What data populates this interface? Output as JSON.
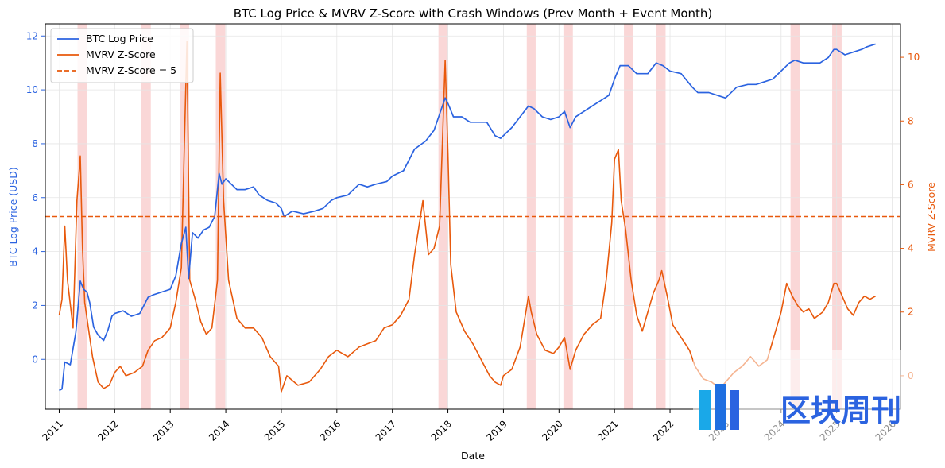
{
  "chart_data": {
    "type": "line",
    "title": "BTC Log Price & MVRV Z-Score with Crash Windows (Prev Month + Event Month)",
    "xlabel": "Date",
    "ylabel_left": "BTC Log Price (USD)",
    "ylabel_right": "MVRV Z-Score",
    "x_ticks": [
      "2011",
      "2012",
      "2013",
      "2014",
      "2015",
      "2016",
      "2017",
      "2018",
      "2019",
      "2020",
      "2021",
      "2022",
      "2023",
      "2024",
      "2025",
      "2026"
    ],
    "y_left_ticks": [
      "0",
      "2",
      "4",
      "6",
      "8",
      "10",
      "12"
    ],
    "y_right_ticks": [
      "0",
      "2",
      "4",
      "6",
      "8",
      "10"
    ],
    "xlim": [
      2010.75,
      2026.15
    ],
    "ylim_left": [
      -1.85,
      12.45
    ],
    "ylim_right": [
      -1.05,
      11.05
    ],
    "grid": true,
    "legend_position": "top-left",
    "colors": {
      "price": "#2b63e0",
      "mvrv": "#e8590c",
      "threshold": "#e8590c",
      "crash": "#f4a6a6",
      "right_axis": "#e8590c",
      "left_axis": "#2b63e0"
    },
    "series": [
      {
        "name": "BTC Log Price",
        "axis": "left",
        "x": [
          2011.0,
          2011.05,
          2011.1,
          2011.2,
          2011.3,
          2011.38,
          2011.44,
          2011.5,
          2011.55,
          2011.62,
          2011.7,
          2011.8,
          2011.88,
          2011.95,
          2012.0,
          2012.15,
          2012.3,
          2012.45,
          2012.6,
          2012.7,
          2012.85,
          2013.0,
          2013.1,
          2013.2,
          2013.28,
          2013.33,
          2013.4,
          2013.5,
          2013.6,
          2013.7,
          2013.8,
          2013.88,
          2013.93,
          2014.0,
          2014.1,
          2014.2,
          2014.35,
          2014.5,
          2014.6,
          2014.75,
          2014.9,
          2015.0,
          2015.05,
          2015.2,
          2015.4,
          2015.6,
          2015.75,
          2015.9,
          2016.0,
          2016.2,
          2016.4,
          2016.55,
          2016.7,
          2016.9,
          2017.0,
          2017.2,
          2017.4,
          2017.6,
          2017.75,
          2017.85,
          2017.95,
          2018.0,
          2018.1,
          2018.25,
          2018.4,
          2018.55,
          2018.7,
          2018.85,
          2018.95,
          2019.0,
          2019.15,
          2019.3,
          2019.45,
          2019.55,
          2019.7,
          2019.85,
          2020.0,
          2020.1,
          2020.2,
          2020.3,
          2020.45,
          2020.6,
          2020.75,
          2020.9,
          2021.0,
          2021.1,
          2021.25,
          2021.4,
          2021.5,
          2021.6,
          2021.75,
          2021.87,
          2022.0,
          2022.2,
          2022.4,
          2022.5,
          2022.7,
          2022.85,
          2023.0,
          2023.2,
          2023.4,
          2023.55,
          2023.7,
          2023.85,
          2024.0,
          2024.15,
          2024.25,
          2024.4,
          2024.55,
          2024.7,
          2024.85,
          2024.95,
          2025.0,
          2025.15,
          2025.3,
          2025.45,
          2025.55,
          2025.7
        ],
        "values": [
          -1.15,
          -1.1,
          -0.1,
          -0.2,
          1.0,
          2.9,
          2.6,
          2.5,
          2.1,
          1.2,
          0.9,
          0.7,
          1.1,
          1.6,
          1.7,
          1.8,
          1.6,
          1.7,
          2.3,
          2.4,
          2.5,
          2.6,
          3.1,
          4.3,
          4.9,
          3.0,
          4.7,
          4.5,
          4.8,
          4.9,
          5.3,
          6.9,
          6.5,
          6.7,
          6.5,
          6.3,
          6.3,
          6.4,
          6.1,
          5.9,
          5.8,
          5.6,
          5.3,
          5.5,
          5.4,
          5.5,
          5.6,
          5.9,
          6.0,
          6.1,
          6.5,
          6.4,
          6.5,
          6.6,
          6.8,
          7.0,
          7.8,
          8.1,
          8.5,
          9.1,
          9.7,
          9.5,
          9.0,
          9.0,
          8.8,
          8.8,
          8.8,
          8.3,
          8.2,
          8.3,
          8.6,
          9.0,
          9.4,
          9.3,
          9.0,
          8.9,
          9.0,
          9.2,
          8.6,
          9.0,
          9.2,
          9.4,
          9.6,
          9.8,
          10.4,
          10.9,
          10.9,
          10.6,
          10.6,
          10.6,
          11.0,
          10.9,
          10.7,
          10.6,
          10.1,
          9.9,
          9.9,
          9.8,
          9.7,
          10.1,
          10.2,
          10.2,
          10.3,
          10.4,
          10.7,
          11.0,
          11.1,
          11.0,
          11.0,
          11.0,
          11.2,
          11.5,
          11.5,
          11.3,
          11.4,
          11.5,
          11.6,
          11.7
        ]
      },
      {
        "name": "MVRV Z-Score",
        "axis": "right",
        "x": [
          2011.0,
          2011.05,
          2011.1,
          2011.15,
          2011.25,
          2011.32,
          2011.38,
          2011.42,
          2011.46,
          2011.55,
          2011.6,
          2011.7,
          2011.8,
          2011.9,
          2012.0,
          2012.1,
          2012.2,
          2012.35,
          2012.5,
          2012.6,
          2012.72,
          2012.85,
          2013.0,
          2013.1,
          2013.2,
          2013.25,
          2013.3,
          2013.35,
          2013.45,
          2013.55,
          2013.65,
          2013.75,
          2013.85,
          2013.9,
          2013.96,
          2014.05,
          2014.2,
          2014.35,
          2014.5,
          2014.65,
          2014.8,
          2014.95,
          2015.0,
          2015.1,
          2015.3,
          2015.5,
          2015.7,
          2015.85,
          2016.0,
          2016.2,
          2016.4,
          2016.55,
          2016.7,
          2016.85,
          2017.0,
          2017.15,
          2017.3,
          2017.4,
          2017.55,
          2017.65,
          2017.75,
          2017.85,
          2017.95,
          2018.0,
          2018.05,
          2018.15,
          2018.3,
          2018.45,
          2018.6,
          2018.75,
          2018.85,
          2018.95,
          2019.0,
          2019.15,
          2019.3,
          2019.45,
          2019.5,
          2019.6,
          2019.75,
          2019.9,
          2020.0,
          2020.1,
          2020.2,
          2020.3,
          2020.45,
          2020.6,
          2020.75,
          2020.85,
          2020.95,
          2021.0,
          2021.07,
          2021.12,
          2021.2,
          2021.3,
          2021.4,
          2021.5,
          2021.6,
          2021.7,
          2021.8,
          2021.85,
          2021.95,
          2022.05,
          2022.2,
          2022.35,
          2022.45,
          2022.6,
          2022.75,
          2022.9,
          2023.0,
          2023.15,
          2023.3,
          2023.45,
          2023.6,
          2023.75,
          2023.9,
          2024.0,
          2024.1,
          2024.2,
          2024.3,
          2024.4,
          2024.5,
          2024.6,
          2024.75,
          2024.85,
          2024.95,
          2025.0,
          2025.1,
          2025.2,
          2025.3,
          2025.4,
          2025.5,
          2025.6,
          2025.7
        ],
        "values": [
          1.9,
          2.4,
          4.7,
          3.0,
          1.5,
          5.5,
          6.9,
          4.0,
          2.3,
          1.2,
          0.6,
          -0.2,
          -0.4,
          -0.3,
          0.1,
          0.3,
          0.0,
          0.1,
          0.3,
          0.8,
          1.1,
          1.2,
          1.5,
          2.3,
          3.4,
          7.0,
          10.5,
          3.0,
          2.4,
          1.7,
          1.3,
          1.5,
          3.0,
          9.5,
          5.5,
          3.0,
          1.8,
          1.5,
          1.5,
          1.2,
          0.6,
          0.3,
          -0.5,
          0.0,
          -0.3,
          -0.2,
          0.2,
          0.6,
          0.8,
          0.6,
          0.9,
          1.0,
          1.1,
          1.5,
          1.6,
          1.9,
          2.4,
          3.8,
          5.5,
          3.8,
          4.0,
          4.7,
          9.9,
          7.0,
          3.5,
          2.0,
          1.4,
          1.0,
          0.5,
          0.0,
          -0.2,
          -0.3,
          0.0,
          0.2,
          0.9,
          2.5,
          2.0,
          1.3,
          0.8,
          0.7,
          0.9,
          1.2,
          0.2,
          0.8,
          1.3,
          1.6,
          1.8,
          3.0,
          4.8,
          6.8,
          7.1,
          5.5,
          4.6,
          3.0,
          1.9,
          1.4,
          2.0,
          2.6,
          3.0,
          3.3,
          2.5,
          1.6,
          1.2,
          0.8,
          0.3,
          -0.1,
          -0.2,
          -0.4,
          -0.2,
          0.1,
          0.3,
          0.6,
          0.3,
          0.5,
          1.4,
          2.0,
          2.9,
          2.5,
          2.2,
          2.0,
          2.1,
          1.8,
          2.0,
          2.3,
          2.9,
          2.9,
          2.5,
          2.1,
          1.9,
          2.3,
          2.5,
          2.4,
          2.5
        ]
      },
      {
        "name": "MVRV Z-Score = 5",
        "axis": "right",
        "type": "hline",
        "value": 5
      }
    ],
    "crash_windows": [
      [
        2011.33,
        2011.5
      ],
      [
        2012.48,
        2012.65
      ],
      [
        2013.17,
        2013.34
      ],
      [
        2013.82,
        2013.99
      ],
      [
        2017.83,
        2018.0
      ],
      [
        2019.42,
        2019.58
      ],
      [
        2020.08,
        2020.25
      ],
      [
        2021.17,
        2021.34
      ],
      [
        2021.75,
        2021.92
      ],
      [
        2024.17,
        2024.34
      ],
      [
        2024.92,
        2025.09
      ]
    ]
  },
  "watermark": {
    "text": "区块周刊"
  }
}
